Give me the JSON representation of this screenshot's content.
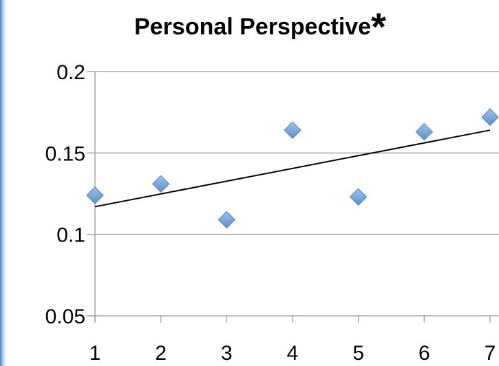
{
  "chart_data": {
    "type": "scatter",
    "title": "Personal Perspective",
    "title_marker": "*",
    "x": [
      1,
      2,
      3,
      4,
      5,
      6,
      7
    ],
    "y": [
      0.124,
      0.131,
      0.109,
      0.164,
      0.123,
      0.163,
      0.172
    ],
    "xlim": [
      1,
      7
    ],
    "ylim": [
      0.05,
      0.2
    ],
    "x_ticks": [
      "1",
      "2",
      "3",
      "4",
      "5",
      "6",
      "7"
    ],
    "y_ticks": [
      "0.2",
      "0.15",
      "0.1",
      "0.05"
    ],
    "y_tick_values": [
      0.2,
      0.15,
      0.1,
      0.05
    ],
    "grid": "horizontal",
    "legend": "none",
    "trendline": {
      "type": "linear",
      "x": [
        1,
        7
      ],
      "y": [
        0.117,
        0.164
      ]
    },
    "marker_color": "#6a9fd8",
    "trendline_color": "#000000",
    "grid_color": "#a6a6a6"
  }
}
